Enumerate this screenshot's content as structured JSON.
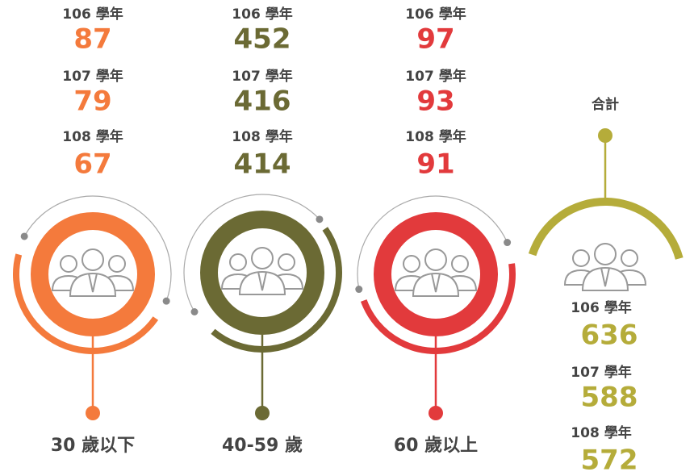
{
  "groups": [
    {
      "label": "30 歲以下",
      "color": "#f47a3c",
      "years": [
        {
          "year": "106 學年",
          "value": 87
        },
        {
          "year": "107 學年",
          "value": 79
        },
        {
          "year": "108 學年",
          "value": 67
        }
      ]
    },
    {
      "label": "40-59 歲",
      "color": "#6b6a34",
      "years": [
        {
          "year": "106 學年",
          "value": 452
        },
        {
          "year": "107 學年",
          "value": 416
        },
        {
          "year": "108 學年",
          "value": 414
        }
      ]
    },
    {
      "label": "60 歲以上",
      "color": "#e23a3c",
      "years": [
        {
          "year": "106 學年",
          "value": 97
        },
        {
          "year": "107 學年",
          "value": 93
        },
        {
          "year": "108 學年",
          "value": 91
        }
      ]
    }
  ],
  "total": {
    "label": "合計",
    "color": "#b5ac3a",
    "years": [
      {
        "year": "106 學年",
        "value": 636
      },
      {
        "year": "107 學年",
        "value": 588
      },
      {
        "year": "108 學年",
        "value": 572
      }
    ]
  }
}
